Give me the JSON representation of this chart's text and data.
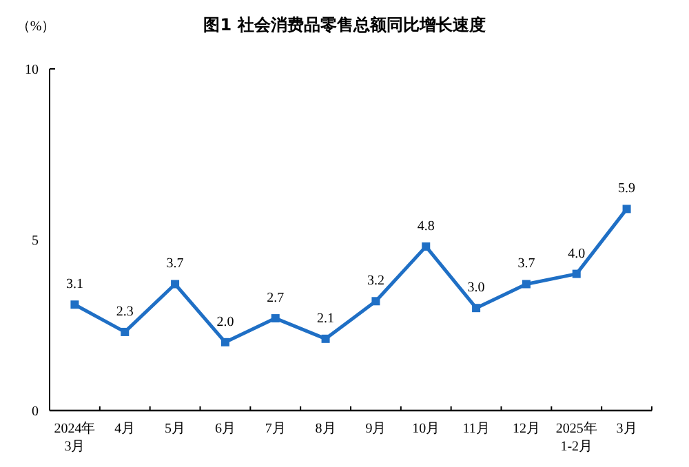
{
  "chart_data": {
    "type": "line",
    "title": "图1  社会消费品零售总额同比增长速度",
    "ylabel": "（%）",
    "categories": [
      "2024年\n3月",
      "4月",
      "5月",
      "6月",
      "7月",
      "8月",
      "9月",
      "10月",
      "11月",
      "12月",
      "2025年\n1-2月",
      "3月"
    ],
    "series": [
      {
        "color": "#1f6fc5",
        "values": [
          3.1,
          2.3,
          3.7,
          2.0,
          2.7,
          2.1,
          3.2,
          4.8,
          3.0,
          3.7,
          4.0,
          5.9
        ],
        "value_labels": [
          "3.1",
          "2.3",
          "3.7",
          "2.0",
          "2.7",
          "2.1",
          "3.2",
          "4.8",
          "3.0",
          "3.7",
          "4.0",
          "5.9"
        ]
      }
    ],
    "ylim": [
      0,
      10
    ],
    "yticks": [
      0,
      5,
      10
    ],
    "grid": false,
    "marker": "square",
    "line_style": "solid"
  }
}
